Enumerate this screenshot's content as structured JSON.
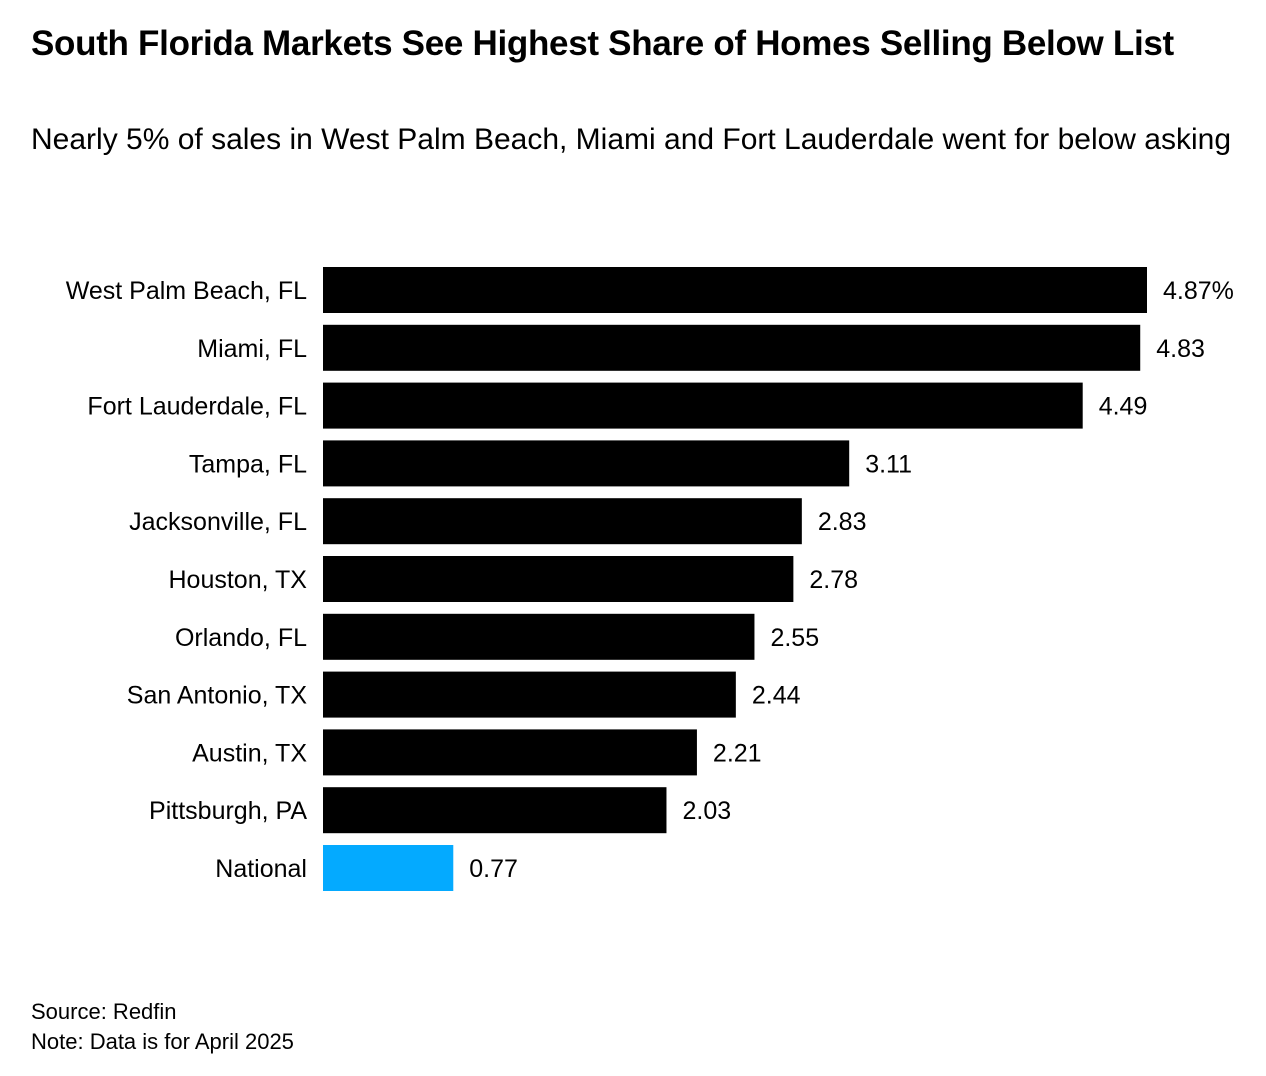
{
  "chart_data": {
    "type": "bar",
    "orientation": "horizontal",
    "title": "South Florida Markets See Highest Share of Homes Selling Below List",
    "subtitle": "Nearly 5% of sales in West Palm Beach, Miami and Fort Lauderdale went for below asking",
    "categories": [
      "West Palm Beach, FL",
      "Miami, FL",
      "Fort Lauderdale, FL",
      "Tampa, FL",
      "Jacksonville, FL",
      "Houston, TX",
      "Orlando, FL",
      "San Antonio, TX",
      "Austin, TX",
      "Pittsburgh, PA",
      "National"
    ],
    "values": [
      4.87,
      4.83,
      4.49,
      3.11,
      2.83,
      2.78,
      2.55,
      2.44,
      2.21,
      2.03,
      0.77
    ],
    "value_labels": [
      "4.87%",
      "4.83",
      "4.49",
      "3.11",
      "2.83",
      "2.78",
      "2.55",
      "2.44",
      "2.21",
      "2.03",
      "0.77"
    ],
    "unit": "%",
    "xlim": [
      0,
      4.87
    ],
    "grid": false,
    "colors": {
      "default": "#000000",
      "highlight": "#04AAFF"
    },
    "highlight_category": "National"
  },
  "footer": {
    "source": "Source: Redfin",
    "note": "Note: Data is for April 2025"
  }
}
